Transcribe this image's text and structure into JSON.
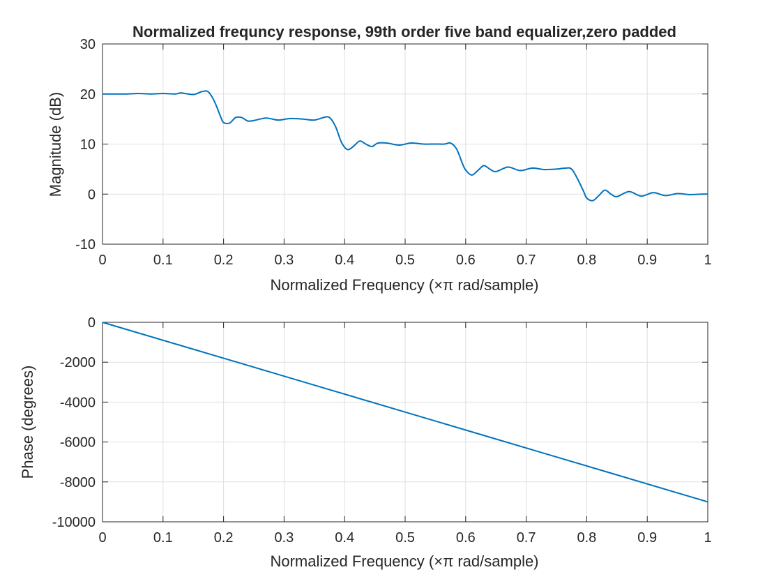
{
  "chart_data": [
    {
      "type": "line",
      "title": "Normalized frequncy response, 99th order five band equalizer,zero padded",
      "xlabel": "Normalized Frequency  (×π rad/sample)",
      "ylabel": "Magnitude (dB)",
      "xlim": [
        0,
        1
      ],
      "ylim": [
        -10,
        30
      ],
      "xticks": [
        0,
        0.1,
        0.2,
        0.3,
        0.4,
        0.5,
        0.6,
        0.7,
        0.8,
        0.9,
        1
      ],
      "xtick_labels": [
        "0",
        "0.1",
        "0.2",
        "0.3",
        "0.4",
        "0.5",
        "0.6",
        "0.7",
        "0.8",
        "0.9",
        "1"
      ],
      "yticks": [
        -10,
        0,
        10,
        20,
        30
      ],
      "ytick_labels": [
        "-10",
        "0",
        "10",
        "20",
        "30"
      ],
      "grid": true,
      "color": "#0072BD",
      "x": [
        0,
        0.02,
        0.04,
        0.06,
        0.08,
        0.1,
        0.12,
        0.13,
        0.15,
        0.165,
        0.175,
        0.185,
        0.195,
        0.2,
        0.21,
        0.22,
        0.23,
        0.24,
        0.25,
        0.27,
        0.29,
        0.31,
        0.33,
        0.35,
        0.365,
        0.375,
        0.385,
        0.395,
        0.405,
        0.415,
        0.425,
        0.435,
        0.445,
        0.455,
        0.47,
        0.49,
        0.51,
        0.53,
        0.55,
        0.565,
        0.575,
        0.585,
        0.595,
        0.6,
        0.61,
        0.62,
        0.63,
        0.64,
        0.65,
        0.67,
        0.69,
        0.71,
        0.73,
        0.75,
        0.765,
        0.775,
        0.785,
        0.795,
        0.8,
        0.81,
        0.82,
        0.83,
        0.84,
        0.85,
        0.87,
        0.89,
        0.91,
        0.93,
        0.95,
        0.97,
        0.99,
        1.0
      ],
      "values": [
        20,
        20,
        20,
        20.1,
        20,
        20.1,
        20,
        20.2,
        19.9,
        20.5,
        20.4,
        18.5,
        15.5,
        14.3,
        14.2,
        15.3,
        15.3,
        14.6,
        14.7,
        15.2,
        14.8,
        15.1,
        15.0,
        14.8,
        15.3,
        15.3,
        13.5,
        10.3,
        8.9,
        9.6,
        10.6,
        10.0,
        9.5,
        10.2,
        10.2,
        9.8,
        10.2,
        10.0,
        10.0,
        10.0,
        10.2,
        9.0,
        6.0,
        4.8,
        3.8,
        4.7,
        5.7,
        5.0,
        4.5,
        5.4,
        4.7,
        5.2,
        4.9,
        5.0,
        5.2,
        5.0,
        3.0,
        0.5,
        -0.8,
        -1.3,
        -0.3,
        0.8,
        0.0,
        -0.5,
        0.5,
        -0.4,
        0.3,
        -0.3,
        0.1,
        -0.1,
        0.0,
        0.0
      ]
    },
    {
      "type": "line",
      "title": "",
      "xlabel": "Normalized Frequency  (×π rad/sample)",
      "ylabel": "Phase (degrees)",
      "xlim": [
        0,
        1
      ],
      "ylim": [
        -10000,
        0
      ],
      "xticks": [
        0,
        0.1,
        0.2,
        0.3,
        0.4,
        0.5,
        0.6,
        0.7,
        0.8,
        0.9,
        1
      ],
      "xtick_labels": [
        "0",
        "0.1",
        "0.2",
        "0.3",
        "0.4",
        "0.5",
        "0.6",
        "0.7",
        "0.8",
        "0.9",
        "1"
      ],
      "yticks": [
        -10000,
        -8000,
        -6000,
        -4000,
        -2000,
        0
      ],
      "ytick_labels": [
        "-10000",
        "-8000",
        "-6000",
        "-4000",
        "-2000",
        "0"
      ],
      "grid": true,
      "color": "#0072BD",
      "x": [
        0,
        0.25,
        0.5,
        0.75,
        1.0
      ],
      "values": [
        0,
        -2250,
        -4500,
        -6750,
        -9000
      ]
    }
  ]
}
